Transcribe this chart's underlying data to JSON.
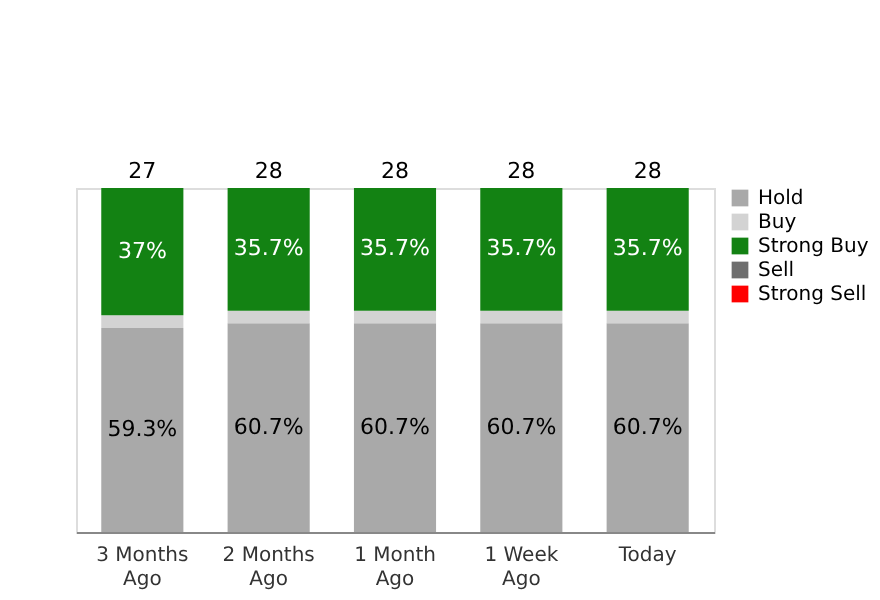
{
  "chart_data": {
    "type": "bar",
    "stacked": true,
    "categories": [
      "3 Months Ago",
      "2 Months Ago",
      "1 Month Ago",
      "1 Week Ago",
      "Today"
    ],
    "series": [
      {
        "name": "Hold",
        "color": "#a9a9a9",
        "values": [
          59.3,
          60.7,
          60.7,
          60.7,
          60.7
        ],
        "value_labels": [
          "59.3%",
          "60.7%",
          "60.7%",
          "60.7%",
          "60.7%"
        ]
      },
      {
        "name": "Buy",
        "color": "#d3d3d3",
        "values": [
          3.7,
          3.6,
          3.6,
          3.6,
          3.6
        ],
        "value_labels": [
          null,
          null,
          null,
          null,
          null
        ]
      },
      {
        "name": "Strong Buy",
        "color": "#138213",
        "values": [
          37,
          35.7,
          35.7,
          35.7,
          35.7
        ],
        "value_labels": [
          "37%",
          "35.7%",
          "35.7%",
          "35.7%",
          "35.7%"
        ]
      },
      {
        "name": "Sell",
        "color": "#6e6e6e",
        "values": [
          null,
          null,
          null,
          null,
          null
        ]
      },
      {
        "name": "Strong Sell",
        "color": "#ff0000",
        "values": [
          null,
          null,
          null,
          null,
          null
        ]
      }
    ],
    "annotations": [
      "27",
      "28",
      "28",
      "28",
      "28"
    ],
    "tick_labels": "x",
    "legend": "right",
    "grid": false
  }
}
